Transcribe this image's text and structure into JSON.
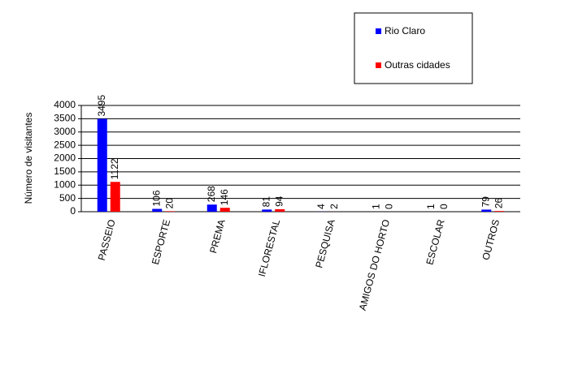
{
  "chart_data": {
    "type": "bar",
    "y_label": "Número de visitantes",
    "categories": [
      "PASSEIO",
      "ESPORTE",
      "PREMA",
      "IFLORESTAL",
      "PESQUISA",
      "AMIGOS DO HORTO",
      "ESCOLAR",
      "OUTROS"
    ],
    "series": [
      {
        "name": "Rio Claro",
        "color": "#0000ff",
        "values": [
          3495,
          106,
          268,
          81,
          4,
          1,
          1,
          79
        ]
      },
      {
        "name": "Outras cidades",
        "color": "#ff0000",
        "values": [
          1122,
          20,
          146,
          94,
          2,
          0,
          0,
          26
        ]
      }
    ],
    "ylim": [
      0,
      4000
    ],
    "yticks": [
      0,
      500,
      1000,
      1500,
      2000,
      2500,
      3000,
      3500,
      4000
    ],
    "grid": true,
    "legend": "top-right"
  }
}
